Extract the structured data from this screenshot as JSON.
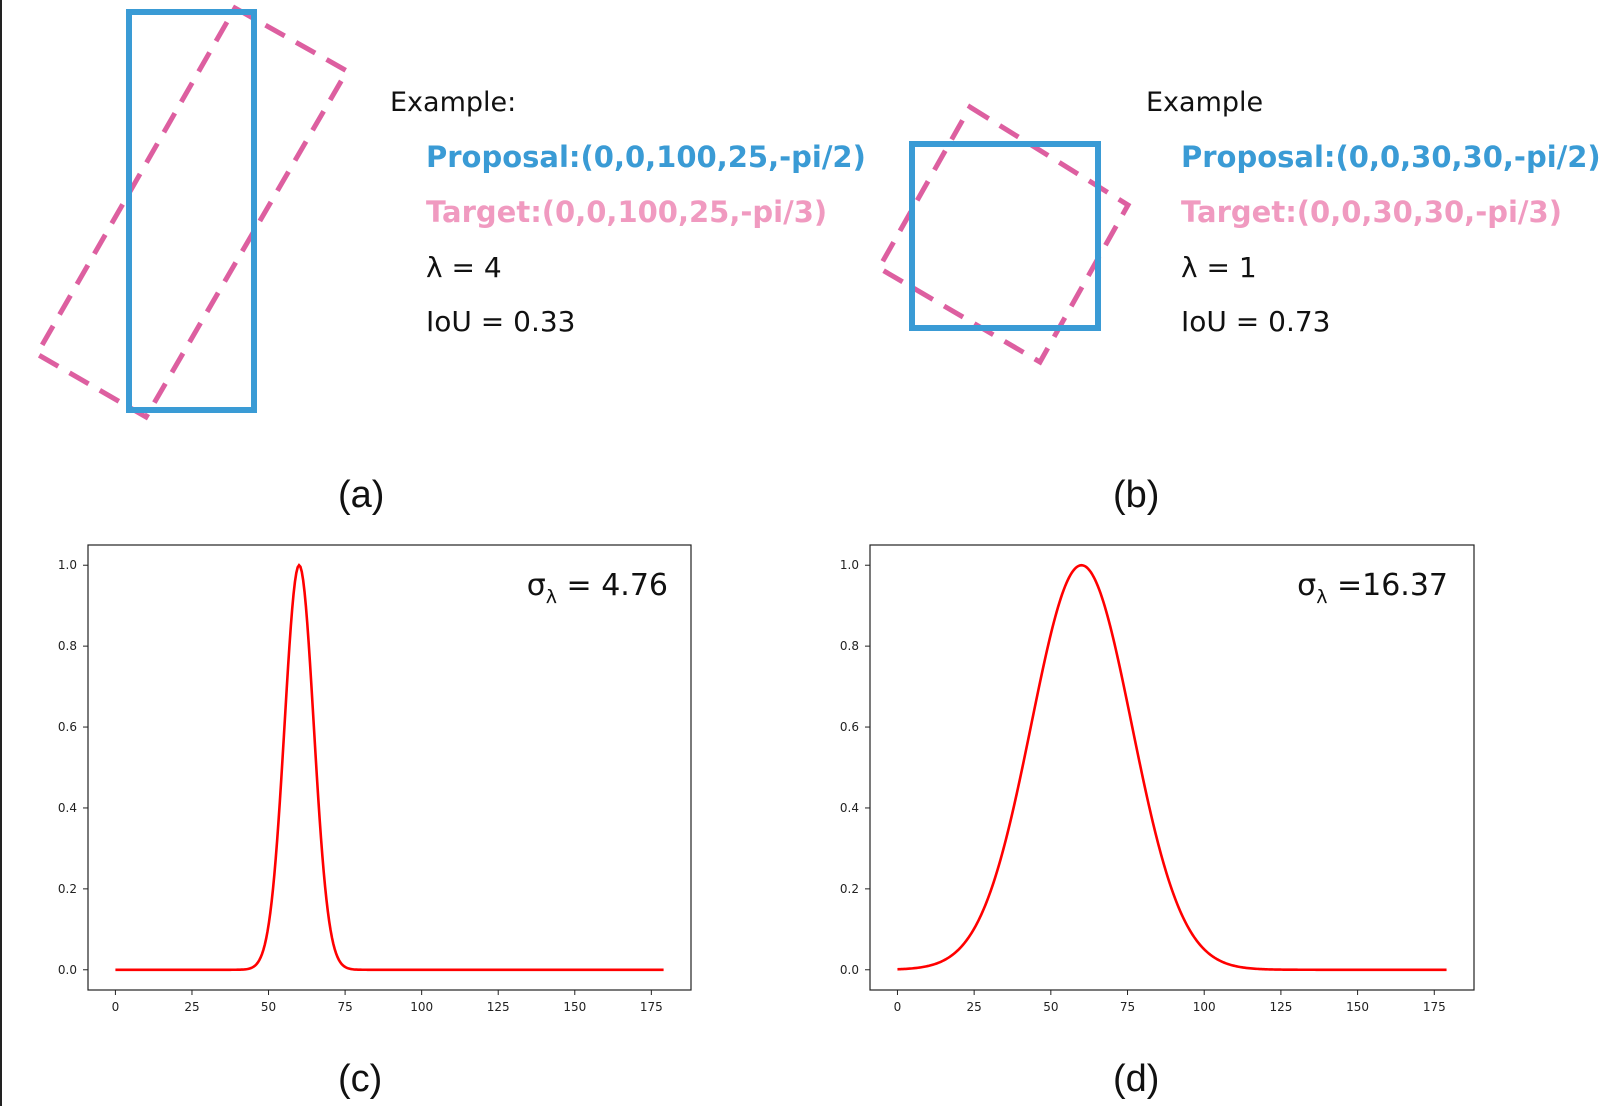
{
  "colors": {
    "proposal": "#3a9bd5",
    "target": "#dd5fa0",
    "target_text": "#f09ac0",
    "curve": "#ff0000"
  },
  "panel_a": {
    "caption": "(a)",
    "example_label": "Example:",
    "proposal": "Proposal:(0,0,100,25,-pi/2)",
    "target": "Target:(0,0,100,25,-pi/3)",
    "lambda": "λ  = 4",
    "iou": "IoU =  0.33"
  },
  "panel_b": {
    "caption": "(b)",
    "example_label": "Example",
    "proposal": "Proposal:(0,0,30,30,-pi/2)",
    "target": "Target:(0,0,30,30,-pi/3)",
    "lambda": "λ  = 1",
    "iou": "IoU = 0.73"
  },
  "panel_c": {
    "caption": "(c)"
  },
  "panel_d": {
    "caption": "(d)"
  },
  "chart_data": [
    {
      "type": "line",
      "panel": "c",
      "function": "gaussian",
      "mean": 60,
      "sigma": 4.76,
      "peak": 1.0,
      "x_range": [
        0,
        179
      ],
      "annotation": "σ",
      "annotation_sub": "λ",
      "annotation_value": "= 4.76",
      "xticks": [
        0,
        25,
        50,
        75,
        100,
        125,
        150,
        175
      ],
      "yticks": [
        "0.0",
        "0.2",
        "0.4",
        "0.6",
        "0.8",
        "1.0"
      ],
      "xlim": [
        -8.95,
        187.95
      ],
      "ylim": [
        -0.05,
        1.05
      ],
      "xlabel": "",
      "ylabel": ""
    },
    {
      "type": "line",
      "panel": "d",
      "function": "gaussian",
      "mean": 60,
      "sigma": 16.37,
      "peak": 1.0,
      "x_range": [
        0,
        179
      ],
      "annotation": "σ",
      "annotation_sub": "λ",
      "annotation_value": "=16.37",
      "xticks": [
        0,
        25,
        50,
        75,
        100,
        125,
        150,
        175
      ],
      "yticks": [
        "0.0",
        "0.2",
        "0.4",
        "0.6",
        "0.8",
        "1.0"
      ],
      "xlim": [
        -8.95,
        187.95
      ],
      "ylim": [
        -0.05,
        1.05
      ],
      "xlabel": "",
      "ylabel": ""
    }
  ]
}
